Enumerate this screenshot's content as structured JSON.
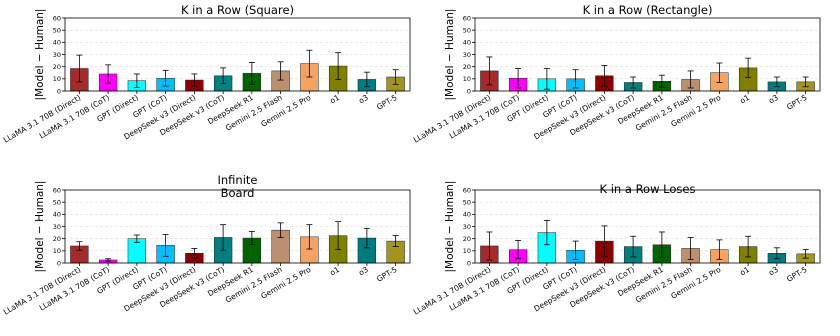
{
  "chart_data": [
    {
      "type": "bar",
      "title_lines": [
        "K in a Row (Square)"
      ],
      "ylabel": "|Model − Human|",
      "ylim": [
        0,
        60
      ],
      "yticks": [
        0,
        10,
        20,
        30,
        40,
        50,
        60
      ],
      "grid": true,
      "categories": [
        "LLaMA 3.1 70B (Direct)",
        "LLaMA 3.1 70B (CoT)",
        "GPT (Direct)",
        "GPT (CoT)",
        "DeepSeek v3 (Direct)",
        "DeepSeek v3 (CoT)",
        "DeepSeek R1",
        "Gemini 2.5 Flash",
        "Gemini 2.5 Pro",
        "o1",
        "o3",
        "GPT-5"
      ],
      "colors": [
        "#a52a2a",
        "#ff00ff",
        "#00ffff",
        "#00bfff",
        "#8b0000",
        "#008080",
        "#006400",
        "#bc8f6f",
        "#f4a460",
        "#808000",
        "#007b7f",
        "#a3931f"
      ],
      "values": [
        18.5,
        14,
        8.5,
        10.5,
        9,
        12.5,
        14.5,
        16.5,
        22.5,
        20.5,
        9.5,
        11.5
      ],
      "errors": [
        11,
        7.5,
        5.5,
        6.5,
        5,
        6.5,
        9,
        7.5,
        11,
        11,
        6,
        6
      ]
    },
    {
      "type": "bar",
      "title_lines": [
        "K in a Row (Rectangle)"
      ],
      "ylabel": "|Model − Human|",
      "ylim": [
        0,
        60
      ],
      "yticks": [
        0,
        10,
        20,
        30,
        40,
        50,
        60
      ],
      "grid": true,
      "categories": [
        "LLaMA 3.1 70B (Direct)",
        "LLaMA 3.1 70B (CoT)",
        "GPT (Direct)",
        "GPT (CoT)",
        "DeepSeek v3 (Direct)",
        "DeepSeek v3 (CoT)",
        "DeepSeek R1",
        "Gemini 2.5 Flash",
        "Gemini 2.5 Pro",
        "o1",
        "o3",
        "GPT-5"
      ],
      "colors": [
        "#a52a2a",
        "#ff00ff",
        "#00ffff",
        "#00bfff",
        "#8b0000",
        "#008080",
        "#006400",
        "#bc8f6f",
        "#f4a460",
        "#808000",
        "#007b7f",
        "#a3931f"
      ],
      "values": [
        16.5,
        10.5,
        10,
        10,
        12.5,
        7,
        8,
        9.5,
        15,
        19,
        7.5,
        7.5
      ],
      "errors": [
        11.5,
        8,
        8.5,
        7.5,
        8.5,
        4.5,
        5,
        7,
        8,
        8,
        4,
        4
      ]
    },
    {
      "type": "bar",
      "title_lines": [
        "Infinite",
        "Board"
      ],
      "ylabel": "|Model − Human|",
      "ylim": [
        0,
        60
      ],
      "yticks": [
        0,
        10,
        20,
        30,
        40,
        50,
        60
      ],
      "grid": true,
      "categories": [
        "LLaMA 3.1 70B (Direct)",
        "LLaMA 3.1 70B (CoT)",
        "GPT (Direct)",
        "GPT (CoT)",
        "DeepSeek v3 (Direct)",
        "DeepSeek v3 (CoT)",
        "DeepSeek R1",
        "Gemini 2.5 Flash",
        "Gemini 2.5 Pro",
        "o1",
        "o3",
        "GPT-5"
      ],
      "colors": [
        "#a52a2a",
        "#ff00ff",
        "#00ffff",
        "#00bfff",
        "#8b0000",
        "#008080",
        "#006400",
        "#bc8f6f",
        "#f4a460",
        "#808000",
        "#007b7f",
        "#a3931f"
      ],
      "values": [
        14,
        2.5,
        20,
        14.5,
        8,
        21,
        20.5,
        27,
        21.5,
        22.5,
        20.5,
        18
      ],
      "errors": [
        3.5,
        1,
        3,
        9,
        4,
        10.5,
        5.5,
        6,
        10,
        11.5,
        8,
        4.5
      ]
    },
    {
      "type": "bar",
      "title_lines": [
        "K in a Row Loses"
      ],
      "ylabel": "|Model − Human|",
      "ylim": [
        0,
        60
      ],
      "yticks": [
        0,
        10,
        20,
        30,
        40,
        50,
        60
      ],
      "grid": true,
      "categories": [
        "LLaMA 3.1 70B (Direct)",
        "LLaMA 3.1 70B (CoT)",
        "GPT (Direct)",
        "GPT (CoT)",
        "DeepSeek v3 (Direct)",
        "DeepSeek v3 (CoT)",
        "DeepSeek R1",
        "Gemini 2.5 Flash",
        "Gemini 2.5 Pro",
        "o1",
        "o3",
        "GPT-5"
      ],
      "colors": [
        "#a52a2a",
        "#ff00ff",
        "#00ffff",
        "#00bfff",
        "#8b0000",
        "#008080",
        "#006400",
        "#bc8f6f",
        "#f4a460",
        "#808000",
        "#007b7f",
        "#a3931f"
      ],
      "values": [
        14,
        11,
        25,
        10.5,
        18,
        13.5,
        15,
        12,
        11,
        13.5,
        8,
        7.5
      ],
      "errors": [
        11.5,
        7.5,
        10,
        7.5,
        12.5,
        8.5,
        10.5,
        9,
        8,
        8.5,
        4.5,
        3.5
      ]
    }
  ]
}
